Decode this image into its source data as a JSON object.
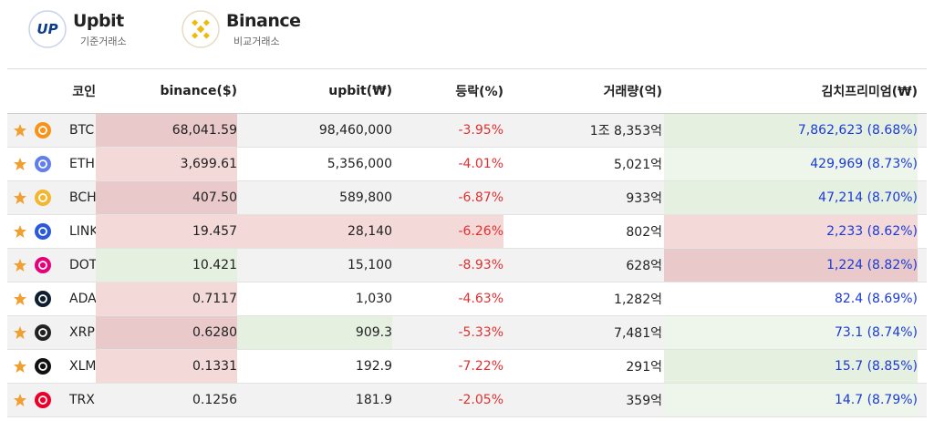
{
  "header": {
    "exchanges": [
      {
        "logo": "UP",
        "name": "Upbit",
        "role": "기준거래소"
      },
      {
        "name": "Binance",
        "role": "비교거래소"
      }
    ]
  },
  "table": {
    "columns": [
      "코인",
      "binance($)",
      "upbit(₩)",
      "등락(%)",
      "거래량(억)",
      "김치프리미엄(₩)"
    ],
    "rows": [
      [
        "BTC",
        "68,041.59",
        "98,460,000",
        "-3.95%",
        "1조 8,353억",
        "7,862,623 (8.68%)"
      ],
      [
        "ETH",
        "3,699.61",
        "5,356,000",
        "-4.01%",
        "5,021억",
        "429,969 (8.73%)"
      ],
      [
        "BCH",
        "407.50",
        "589,800",
        "-6.87%",
        "933억",
        "47,214 (8.70%)"
      ],
      [
        "LINK",
        "19.457",
        "28,140",
        "-6.26%",
        "802억",
        "2,233 (8.62%)"
      ],
      [
        "DOT",
        "10.421",
        "15,100",
        "-8.93%",
        "628억",
        "1,224 (8.82%)"
      ],
      [
        "ADA",
        "0.7117",
        "1,030",
        "-4.63%",
        "1,282억",
        "82.4 (8.69%)"
      ],
      [
        "XRP",
        "0.6280",
        "909.3",
        "-5.33%",
        "7,481억",
        "73.1 (8.74%)"
      ],
      [
        "XLM",
        "0.1331",
        "192.9",
        "-7.22%",
        "291억",
        "15.7 (8.85%)"
      ],
      [
        "TRX",
        "0.1256",
        "181.9",
        "-2.05%",
        "359억",
        "14.7 (8.79%)"
      ]
    ]
  }
}
